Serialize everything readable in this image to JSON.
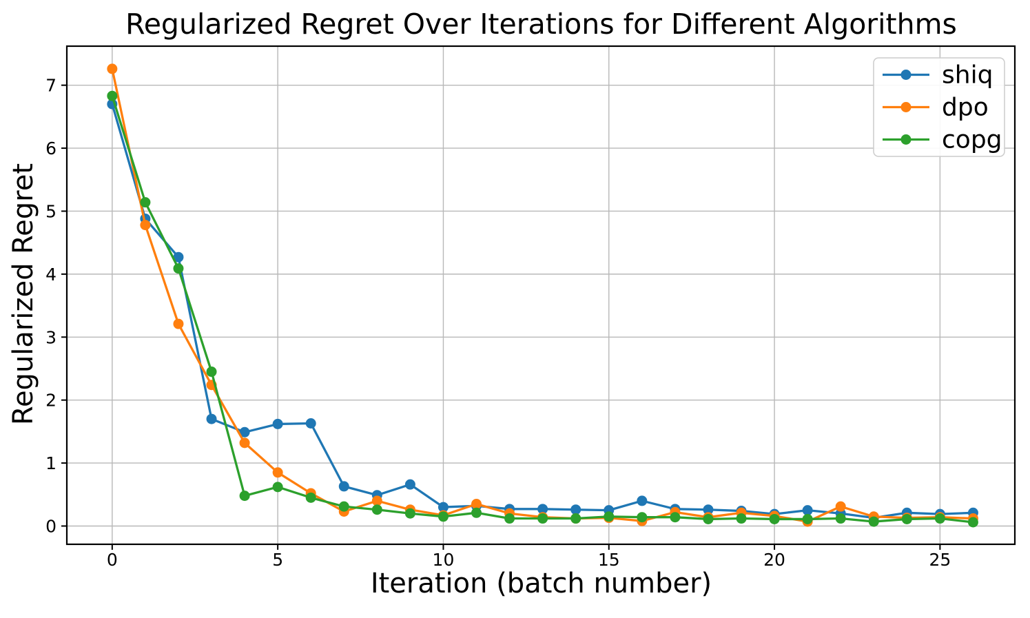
{
  "chart_data": {
    "type": "line",
    "title": "Regularized Regret Over Iterations for Different Algorithms",
    "xlabel": "Iteration (batch number)",
    "ylabel": "Regularized Regret",
    "x": [
      0,
      1,
      2,
      3,
      4,
      5,
      6,
      7,
      8,
      9,
      10,
      11,
      12,
      13,
      14,
      15,
      16,
      17,
      18,
      19,
      20,
      21,
      22,
      23,
      24,
      25,
      26
    ],
    "series": [
      {
        "name": "shiq",
        "color": "#1f77b4",
        "values": [
          6.7,
          4.88,
          4.27,
          1.7,
          1.49,
          1.62,
          1.63,
          0.63,
          0.49,
          0.66,
          0.3,
          0.32,
          0.27,
          0.27,
          0.26,
          0.25,
          0.4,
          0.27,
          0.26,
          0.24,
          0.19,
          0.25,
          0.2,
          0.13,
          0.21,
          0.19,
          0.21
        ]
      },
      {
        "name": "dpo",
        "color": "#ff7f0e",
        "values": [
          7.26,
          4.78,
          3.21,
          2.24,
          1.32,
          0.85,
          0.52,
          0.23,
          0.4,
          0.26,
          0.17,
          0.35,
          0.2,
          0.14,
          0.12,
          0.13,
          0.08,
          0.22,
          0.14,
          0.21,
          0.16,
          0.07,
          0.31,
          0.15,
          0.13,
          0.14,
          0.12
        ]
      },
      {
        "name": "copg",
        "color": "#2ca02c",
        "values": [
          6.83,
          5.14,
          4.09,
          2.45,
          0.48,
          0.62,
          0.45,
          0.31,
          0.26,
          0.2,
          0.15,
          0.21,
          0.12,
          0.12,
          0.12,
          0.15,
          0.14,
          0.14,
          0.11,
          0.12,
          0.11,
          0.11,
          0.12,
          0.07,
          0.11,
          0.12,
          0.06
        ]
      }
    ],
    "xticks": [
      "0",
      "5",
      "10",
      "15",
      "20",
      "25"
    ],
    "xtick_values": [
      0,
      5,
      10,
      15,
      20,
      25
    ],
    "yticks": [
      "0",
      "1",
      "2",
      "3",
      "4",
      "5",
      "6",
      "7"
    ],
    "ytick_values": [
      0,
      1,
      2,
      3,
      4,
      5,
      6,
      7
    ],
    "xlim": [
      -1.37,
      27.26
    ],
    "ylim": [
      -0.29,
      7.62
    ],
    "grid": true,
    "grid_color": "#b8b8b8",
    "frame_color": "#000000",
    "background": "#ffffff",
    "legend_position": "upper right",
    "legend_labels": [
      "shiq",
      "dpo",
      "copg"
    ],
    "marker": "o"
  }
}
